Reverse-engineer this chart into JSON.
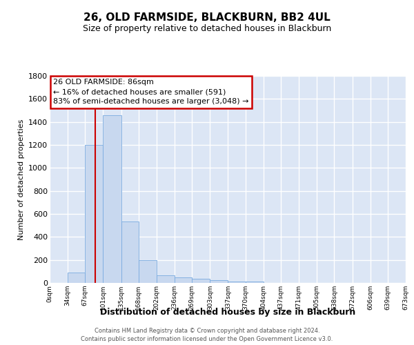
{
  "title": "26, OLD FARMSIDE, BLACKBURN, BB2 4UL",
  "subtitle": "Size of property relative to detached houses in Blackburn",
  "xlabel": "Distribution of detached houses by size in Blackburn",
  "ylabel": "Number of detached properties",
  "bar_fill_color": "#c8d8ef",
  "bar_edge_color": "#7aabe0",
  "fig_background_color": "#ffffff",
  "axes_background_color": "#dce6f5",
  "grid_color": "#ffffff",
  "annotation_text": "26 OLD FARMSIDE: 86sqm\n← 16% of detached houses are smaller (591)\n83% of semi-detached houses are larger (3,048) →",
  "annotation_box_facecolor": "#ffffff",
  "annotation_box_edgecolor": "#cc0000",
  "red_line_x": 86,
  "bin_edges": [
    0,
    34,
    67,
    101,
    135,
    168,
    202,
    236,
    269,
    303,
    337,
    370,
    404,
    437,
    471,
    505,
    538,
    572,
    606,
    639,
    673
  ],
  "bar_heights": [
    0,
    90,
    1200,
    1460,
    535,
    200,
    65,
    48,
    35,
    25,
    15,
    10,
    0,
    0,
    0,
    0,
    0,
    0,
    0,
    0
  ],
  "ylim": [
    0,
    1800
  ],
  "yticks": [
    0,
    200,
    400,
    600,
    800,
    1000,
    1200,
    1400,
    1600,
    1800
  ],
  "footnote1": "Contains HM Land Registry data © Crown copyright and database right 2024.",
  "footnote2": "Contains public sector information licensed under the Open Government Licence v3.0.",
  "title_fontsize": 11,
  "subtitle_fontsize": 9,
  "xlabel_fontsize": 9,
  "ylabel_fontsize": 8,
  "ytick_fontsize": 8,
  "xtick_fontsize": 6.5,
  "annotation_fontsize": 8,
  "footnote_fontsize": 6
}
